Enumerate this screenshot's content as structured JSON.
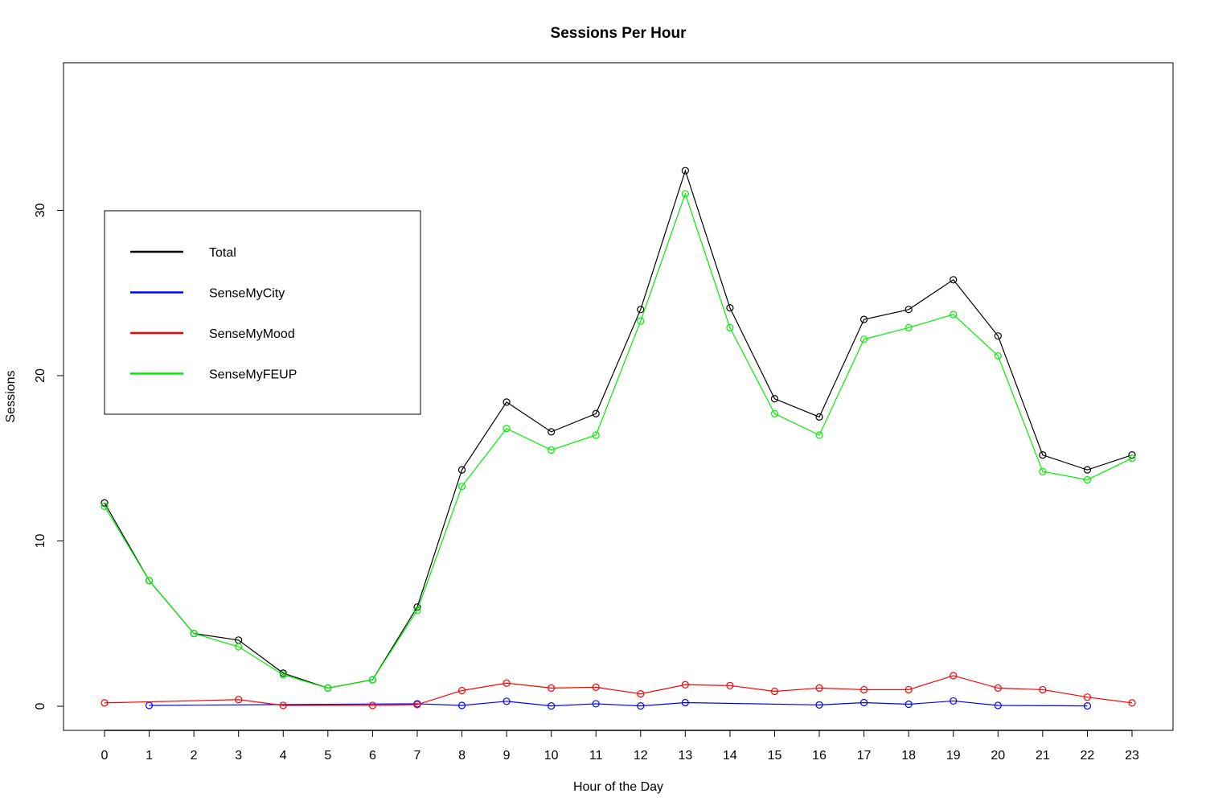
{
  "chart_data": {
    "type": "line",
    "title": "Sessions Per Hour",
    "xlabel": "Hour of the Day",
    "ylabel": "Sessions",
    "x": [
      0,
      1,
      2,
      3,
      4,
      5,
      6,
      7,
      8,
      9,
      10,
      11,
      12,
      13,
      14,
      15,
      16,
      17,
      18,
      19,
      20,
      21,
      22,
      23
    ],
    "xlim": [
      0,
      23
    ],
    "ylim": [
      0,
      35
    ],
    "yticks": [
      0,
      10,
      20,
      30
    ],
    "grid": false,
    "legend_position": "top-left",
    "series": [
      {
        "name": "Total",
        "color": "#000000",
        "values": [
          12.3,
          7.6,
          4.4,
          4.0,
          2.0,
          1.1,
          1.6,
          6.0,
          14.3,
          18.4,
          16.6,
          17.7,
          24.0,
          32.4,
          24.1,
          18.6,
          17.5,
          23.4,
          24.0,
          25.8,
          22.4,
          15.2,
          14.3,
          15.2
        ]
      },
      {
        "name": "SenseMyCity",
        "color": "#0000ff",
        "values": [
          null,
          0.05,
          null,
          null,
          null,
          null,
          null,
          0.15,
          0.05,
          0.3,
          0.02,
          0.15,
          0.02,
          0.22,
          null,
          null,
          0.08,
          0.22,
          0.12,
          0.32,
          0.05,
          null,
          0.02,
          null
        ]
      },
      {
        "name": "SenseMyMood",
        "color": "#ff0000",
        "values": [
          0.2,
          null,
          null,
          0.4,
          0.05,
          null,
          0.05,
          0.1,
          0.95,
          1.4,
          1.1,
          1.15,
          0.75,
          1.3,
          1.25,
          0.9,
          1.1,
          1.0,
          1.0,
          1.85,
          1.1,
          1.0,
          0.55,
          0.2
        ]
      },
      {
        "name": "SenseMyFEUP",
        "color": "#00ee00",
        "values": [
          12.1,
          7.6,
          4.4,
          3.6,
          1.9,
          1.1,
          1.6,
          5.8,
          13.3,
          16.8,
          15.5,
          16.4,
          23.3,
          31.0,
          22.9,
          17.7,
          16.4,
          22.2,
          22.9,
          23.7,
          21.2,
          14.2,
          13.7,
          15.0
        ]
      }
    ]
  }
}
